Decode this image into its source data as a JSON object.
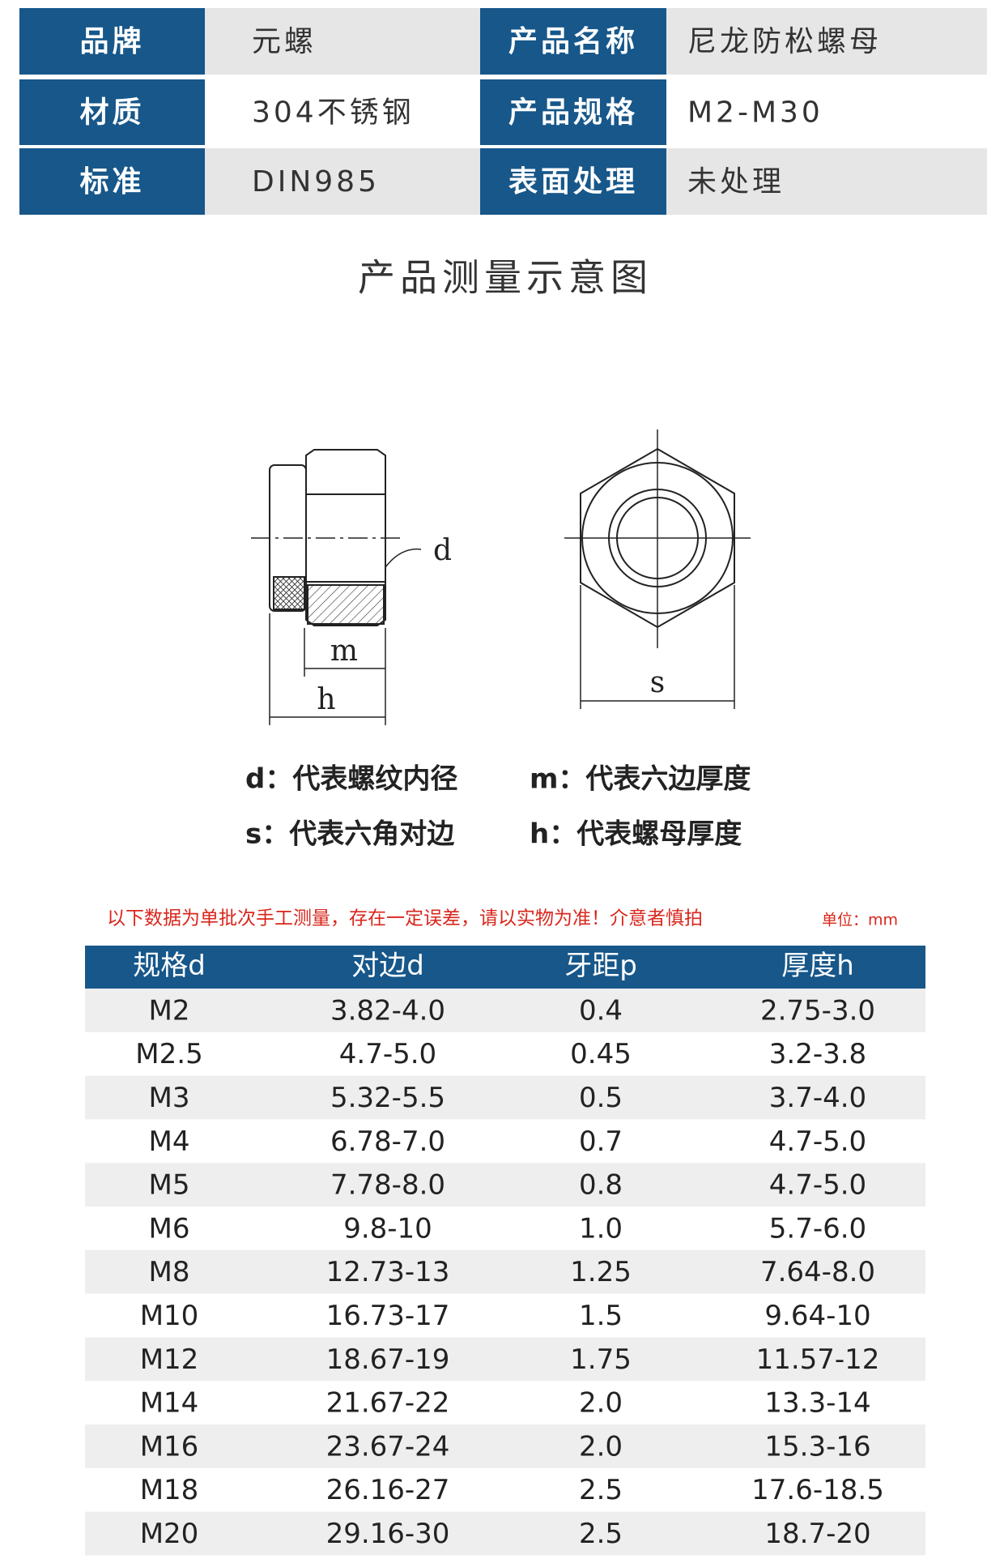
{
  "spec": {
    "rows": [
      [
        "品牌",
        "元螺",
        "产品名称",
        "尼龙防松螺母"
      ],
      [
        "材质",
        "304不锈钢",
        "产品规格",
        "M2-M30"
      ],
      [
        "标准",
        "DIN985",
        "表面处理",
        "未处理"
      ]
    ]
  },
  "diagram": {
    "title": "产品测量示意图",
    "labels": {
      "d": "d",
      "m": "m",
      "h": "h",
      "s": "s"
    },
    "legend": [
      "d：代表螺纹内径",
      "m：代表六边厚度",
      "s：代表六角对边",
      "h：代表螺母厚度"
    ]
  },
  "note": "以下数据为单批次手工测量，存在一定误差，请以实物为准！介意者慎拍",
  "unit": "单位：mm",
  "table": {
    "header": [
      "规格d",
      "对边d",
      "牙距p",
      "厚度h"
    ],
    "rows": [
      [
        "M2",
        "3.82-4.0",
        "0.4",
        "2.75-3.0"
      ],
      [
        "M2.5",
        "4.7-5.0",
        "0.45",
        "3.2-3.8"
      ],
      [
        "M3",
        "5.32-5.5",
        "0.5",
        "3.7-4.0"
      ],
      [
        "M4",
        "6.78-7.0",
        "0.7",
        "4.7-5.0"
      ],
      [
        "M5",
        "7.78-8.0",
        "0.8",
        "4.7-5.0"
      ],
      [
        "M6",
        "9.8-10",
        "1.0",
        "5.7-6.0"
      ],
      [
        "M8",
        "12.73-13",
        "1.25",
        "7.64-8.0"
      ],
      [
        "M10",
        "16.73-17",
        "1.5",
        "9.64-10"
      ],
      [
        "M12",
        "18.67-19",
        "1.75",
        "11.57-12"
      ],
      [
        "M14",
        "21.67-22",
        "2.0",
        "13.3-14"
      ],
      [
        "M16",
        "23.67-24",
        "2.0",
        "15.3-16"
      ],
      [
        "M18",
        "26.16-27",
        "2.5",
        "17.6-18.5"
      ],
      [
        "M20",
        "29.16-30",
        "2.5",
        "18.7-20"
      ]
    ]
  }
}
